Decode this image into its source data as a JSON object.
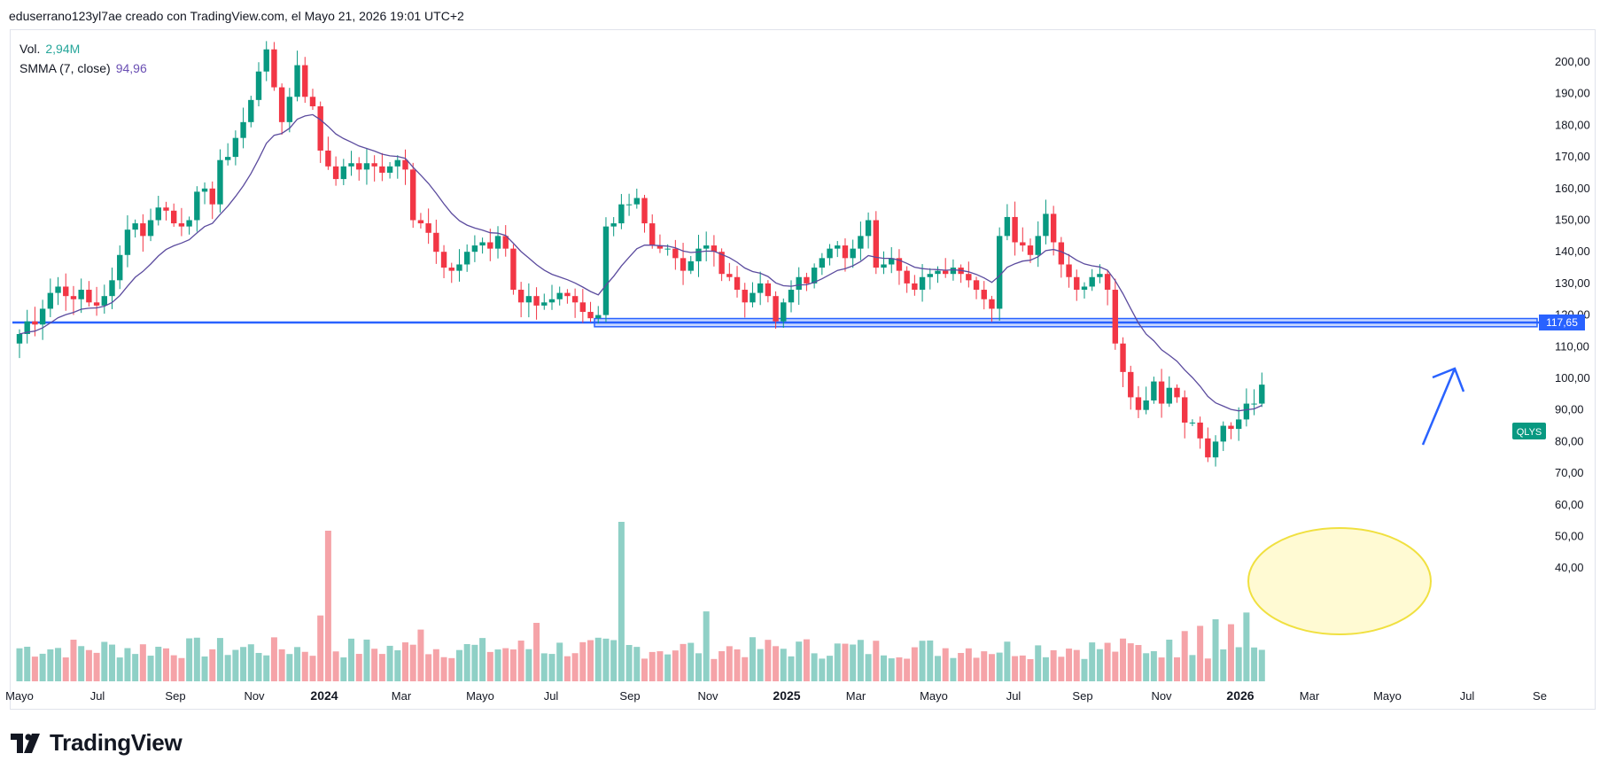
{
  "header": {
    "title": "eduserrano123yl7ae creado con TradingView.com, el Mayo 21, 2026 19:01 UTC+2"
  },
  "legend": {
    "vol_label": "Vol.",
    "vol_value": "2,94M",
    "smma_label": "SMMA (7, close)",
    "smma_value": "94,96"
  },
  "footer": {
    "brand": "TradingView"
  },
  "colors": {
    "up": "#089981",
    "down": "#f23645",
    "vol_up": "#8fd0c6",
    "vol_down": "#f5a3a8",
    "smma": "#5b4b9e",
    "hline": "#2962ff",
    "arrow": "#2962ff",
    "ellipse_fill": "#fff59d",
    "ellipse_stroke": "#f0e040"
  },
  "chart_data": {
    "type": "candlestick",
    "symbol_tag": "QLYS",
    "price_axis": {
      "ticks": [
        "200,00",
        "190,00",
        "180,00",
        "170,00",
        "160,00",
        "150,00",
        "140,00",
        "130,00",
        "120,00",
        "110,00",
        "100,00",
        "90,00",
        "80,00",
        "70,00",
        "60,00",
        "50,00",
        "40,00"
      ],
      "range": [
        31,
        207
      ]
    },
    "time_axis": {
      "ticks": [
        {
          "label": "Mayo",
          "major": false
        },
        {
          "label": "Jul",
          "major": false
        },
        {
          "label": "Sep",
          "major": false
        },
        {
          "label": "Nov",
          "major": false
        },
        {
          "label": "2024",
          "major": true
        },
        {
          "label": "Mar",
          "major": false
        },
        {
          "label": "Mayo",
          "major": false
        },
        {
          "label": "Jul",
          "major": false
        },
        {
          "label": "Sep",
          "major": false
        },
        {
          "label": "Nov",
          "major": false
        },
        {
          "label": "2025",
          "major": true
        },
        {
          "label": "Mar",
          "major": false
        },
        {
          "label": "Mayo",
          "major": false
        },
        {
          "label": "Jul",
          "major": false
        },
        {
          "label": "Sep",
          "major": false
        },
        {
          "label": "Nov",
          "major": false
        },
        {
          "label": "2026",
          "major": true
        },
        {
          "label": "Mar",
          "major": false
        },
        {
          "label": "Mayo",
          "major": false
        },
        {
          "label": "Jul",
          "major": false
        },
        {
          "label": "Se",
          "major": false
        }
      ]
    },
    "horizontal_line": {
      "value": 117.65,
      "label": "117,65"
    },
    "support_zone": {
      "from": 116.3,
      "to": 118.9
    },
    "candles_close": [
      114,
      118,
      117,
      122,
      127,
      129,
      126,
      125,
      128,
      124,
      123,
      126,
      131,
      139,
      147,
      149,
      145,
      150,
      154,
      153,
      149,
      148,
      150,
      159,
      160,
      155,
      169,
      170,
      176,
      181,
      188,
      197,
      204,
      192,
      181,
      189,
      199,
      189,
      186,
      172,
      167,
      163,
      167,
      168,
      166,
      168,
      167,
      165,
      167,
      169,
      166,
      150,
      149,
      146,
      140,
      135,
      134,
      136,
      140,
      142,
      143,
      141,
      145,
      141,
      128,
      124,
      126,
      123,
      124,
      125,
      127,
      126,
      124,
      121,
      119,
      120,
      148,
      149,
      155,
      155,
      157,
      149,
      142,
      141,
      141,
      138,
      134,
      137,
      141,
      142,
      140,
      133,
      132,
      128,
      124,
      127,
      130,
      126,
      118,
      124,
      128,
      132,
      130,
      135,
      138,
      141,
      142,
      138,
      141,
      145,
      150,
      135,
      136,
      138,
      134,
      130,
      128,
      132,
      133,
      134,
      133,
      135,
      133,
      131,
      128,
      125,
      122,
      145,
      151,
      143,
      142,
      139,
      145,
      152,
      143,
      136,
      132,
      128,
      129,
      132,
      133,
      128,
      111,
      102,
      94,
      90,
      93,
      99,
      92,
      97,
      94,
      86,
      86,
      81,
      75,
      80,
      85,
      84,
      87,
      92,
      92,
      98
    ]
  }
}
